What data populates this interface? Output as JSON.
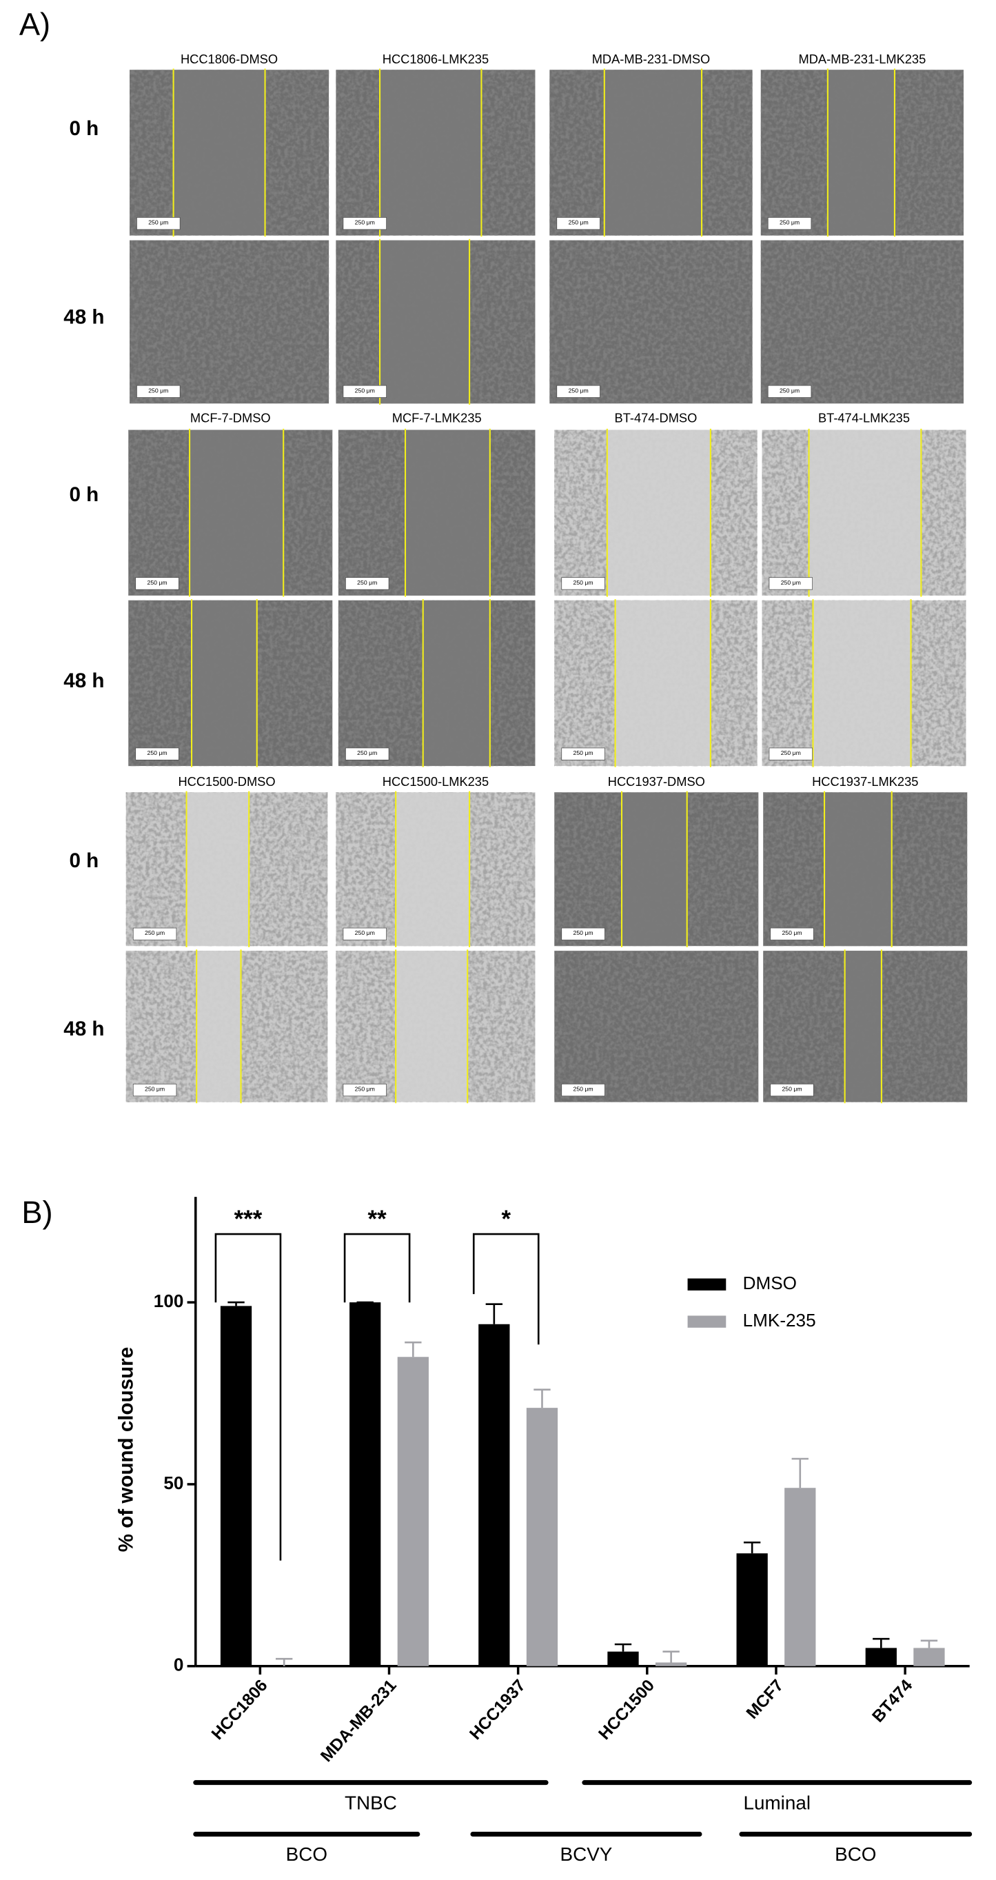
{
  "panel_a": {
    "label": "A)",
    "scale_bar_label": "250 μm",
    "blocks": [
      {
        "titles": [
          "HCC1806-DMSO",
          "HCC1806-LMK235",
          "MDA-MB-231-DMSO",
          "MDA-MB-231-LMK235"
        ],
        "rows": [
          "0 h",
          "48 h"
        ]
      },
      {
        "titles": [
          "MCF-7-DMSO",
          "MCF-7-LMK235",
          "BT-474-DMSO",
          "BT-474-LMK235"
        ],
        "rows": [
          "0 h",
          "48 h"
        ]
      },
      {
        "titles": [
          "HCC1500-DMSO",
          "HCC1500-LMK235",
          "HCC1937-DMSO",
          "HCC1937-LMK235"
        ],
        "rows": [
          "0 h",
          "48 h"
        ]
      }
    ]
  },
  "panel_b_label": "B)",
  "chart_data": {
    "type": "bar",
    "y_label": "% of wound clousure",
    "categories": [
      "HCC1806",
      "MDA-MB-231",
      "HCC1937",
      "HCC1500",
      "MCF7",
      "BT474"
    ],
    "series": [
      {
        "name": "DMSO",
        "color": "#000000",
        "values": [
          99,
          100,
          94,
          4,
          31,
          5
        ],
        "errors": [
          1,
          0,
          5.5,
          2,
          3,
          2.5
        ]
      },
      {
        "name": "LMK-235",
        "color": "#a3a3a8",
        "values": [
          0,
          85,
          71,
          1,
          49,
          5
        ],
        "errors": [
          2,
          4,
          5,
          3,
          8,
          2
        ]
      }
    ],
    "ylim": [
      0,
      129
    ],
    "yticks": [
      0,
      50,
      100
    ],
    "legend": "upper right",
    "annotations": [
      "***",
      "**",
      "*"
    ],
    "group_rows": [
      [
        "TNBC",
        "Luminal"
      ],
      [
        "BCO",
        "BCVY",
        "BCO"
      ]
    ]
  }
}
